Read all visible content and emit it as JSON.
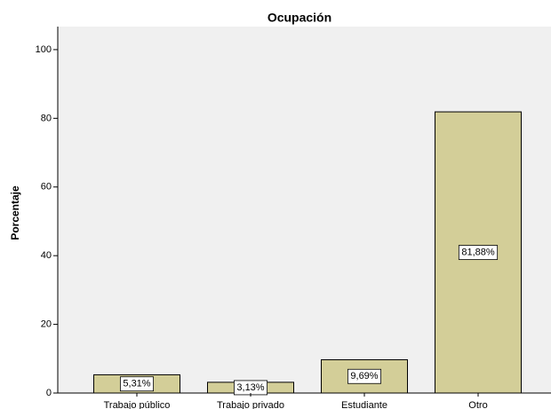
{
  "chart_data": {
    "type": "bar",
    "title": "Ocupación",
    "y_label": "Porcentaje",
    "categories": [
      "Trabajo público",
      "Trabajo privado",
      "Estudiante",
      "Otro"
    ],
    "values": [
      5.31,
      3.13,
      9.69,
      81.88
    ],
    "value_labels": [
      "5,31%",
      "3,13%",
      "9,69%",
      "81,88%"
    ],
    "color": "#d3ce98",
    "ylim": [
      0,
      106.7
    ],
    "yticks": [
      0,
      20,
      40,
      60,
      80,
      100
    ],
    "grid": false
  }
}
